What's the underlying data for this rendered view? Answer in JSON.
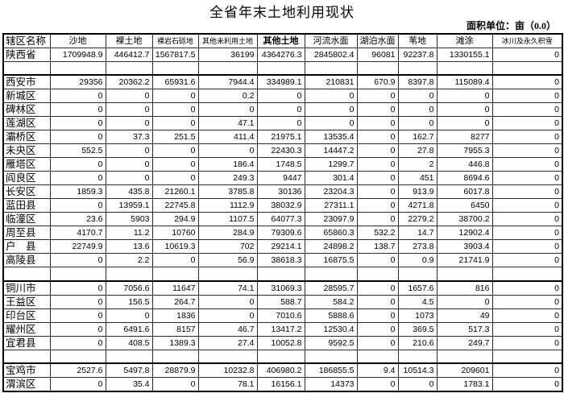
{
  "title": "全省年末土地利用现状",
  "unit_note": "面积单位：亩（0.0）",
  "table": {
    "columns": [
      "辖区名称",
      "沙地",
      "裸土地",
      "裸岩石砾地",
      "其他未利用土地",
      "其他土地",
      "河流水面",
      "湖泊水面",
      "苇地",
      "滩涂",
      "冰川及永久积雪"
    ],
    "rows": [
      {
        "type": "province",
        "name": "陕西省",
        "values": [
          "1709948.9",
          "446412.7",
          "1567817.5",
          "36199",
          "4364276.3",
          "2845802.4",
          "96081",
          "92237.8",
          "1330155.1",
          "0"
        ]
      },
      {
        "type": "spacer",
        "name": "",
        "values": [
          "",
          "",
          "",
          "",
          "",
          "",
          "",
          "",
          "",
          ""
        ]
      },
      {
        "type": "city",
        "name": "西安市",
        "values": [
          "29356",
          "20362.2",
          "65931.6",
          "7944.4",
          "334989.1",
          "210831",
          "670.9",
          "8397.8",
          "115089.4",
          "0"
        ]
      },
      {
        "type": "district",
        "name": "新城区",
        "values": [
          "0",
          "0",
          "0",
          "0.2",
          "0",
          "0",
          "0",
          "0",
          "0",
          "0"
        ]
      },
      {
        "type": "district",
        "name": "碑林区",
        "values": [
          "0",
          "0",
          "0",
          "0",
          "0",
          "0",
          "0",
          "0",
          "0",
          "0"
        ]
      },
      {
        "type": "district",
        "name": "莲湖区",
        "values": [
          "0",
          "0",
          "0",
          "47.1",
          "0",
          "0",
          "0",
          "0",
          "0",
          "0"
        ]
      },
      {
        "type": "district",
        "name": "灞桥区",
        "values": [
          "0",
          "37.3",
          "251.5",
          "411.4",
          "21975.1",
          "13535.4",
          "0",
          "162.7",
          "8277",
          "0"
        ]
      },
      {
        "type": "district",
        "name": "未央区",
        "values": [
          "552.5",
          "0",
          "0",
          "0",
          "22430.3",
          "14447.2",
          "0",
          "27.8",
          "7955.3",
          "0"
        ]
      },
      {
        "type": "district",
        "name": "雁塔区",
        "values": [
          "0",
          "0",
          "0",
          "186.4",
          "1748.5",
          "1299.7",
          "0",
          "2",
          "446.8",
          "0"
        ]
      },
      {
        "type": "district",
        "name": "阎良区",
        "values": [
          "0",
          "0",
          "0",
          "249.3",
          "9447",
          "301.4",
          "0",
          "451",
          "8694.6",
          "0"
        ]
      },
      {
        "type": "district",
        "name": "长安区",
        "values": [
          "1859.3",
          "435.8",
          "21260.1",
          "3785.8",
          "30136",
          "23204.3",
          "0",
          "913.9",
          "6017.8",
          "0"
        ]
      },
      {
        "type": "district",
        "name": "蓝田县",
        "values": [
          "0",
          "13959.1",
          "22745.8",
          "1112.9",
          "38032.9",
          "27311.1",
          "0",
          "4271.8",
          "6450",
          "0"
        ]
      },
      {
        "type": "district",
        "name": "临潼区",
        "values": [
          "23.6",
          "5903",
          "294.9",
          "1107.5",
          "64077.3",
          "23097.9",
          "0",
          "2279.2",
          "38700.2",
          "0"
        ]
      },
      {
        "type": "district",
        "name": "周至县",
        "values": [
          "4170.7",
          "11.2",
          "10760",
          "284.9",
          "79309.6",
          "65860.3",
          "532.2",
          "14.7",
          "12902.4",
          "0"
        ]
      },
      {
        "type": "district",
        "name": "户　县",
        "values": [
          "22749.9",
          "13.6",
          "10619.3",
          "702",
          "29214.1",
          "24898.2",
          "138.7",
          "273.8",
          "3903.4",
          "0"
        ]
      },
      {
        "type": "district",
        "name": "高陵县",
        "values": [
          "0",
          "2.2",
          "0",
          "56.9",
          "38618.3",
          "16875.5",
          "0",
          "0.9",
          "21741.9",
          "0"
        ]
      },
      {
        "type": "spacer",
        "name": "",
        "values": [
          "",
          "",
          "",
          "",
          "",
          "",
          "",
          "",
          "",
          ""
        ]
      },
      {
        "type": "city",
        "name": "铜川市",
        "values": [
          "0",
          "7056.6",
          "11647",
          "74.1",
          "31069.3",
          "28595.7",
          "0",
          "1657.6",
          "816",
          "0"
        ]
      },
      {
        "type": "district",
        "name": "王益区",
        "values": [
          "0",
          "156.5",
          "264.7",
          "0",
          "588.7",
          "584.2",
          "0",
          "4.5",
          "0",
          "0"
        ]
      },
      {
        "type": "district",
        "name": "印台区",
        "values": [
          "0",
          "0",
          "1836",
          "0",
          "7010.6",
          "5888.6",
          "0",
          "1073",
          "49",
          "0"
        ]
      },
      {
        "type": "district",
        "name": "耀州区",
        "values": [
          "0",
          "6491.6",
          "8157",
          "46.7",
          "13417.2",
          "12530.4",
          "0",
          "369.5",
          "517.3",
          "0"
        ]
      },
      {
        "type": "district",
        "name": "宜君县",
        "values": [
          "0",
          "408.5",
          "1389.3",
          "27.4",
          "10052.8",
          "9592.5",
          "0",
          "210.6",
          "249.7",
          "0"
        ]
      },
      {
        "type": "spacer",
        "name": "",
        "values": [
          "",
          "",
          "",
          "",
          "",
          "",
          "",
          "",
          "",
          ""
        ]
      },
      {
        "type": "city",
        "name": "宝鸡市",
        "values": [
          "2527.6",
          "5497.8",
          "28879.9",
          "10232.8",
          "406980.2",
          "186855.5",
          "9.4",
          "10514.3",
          "209601",
          "0"
        ]
      },
      {
        "type": "district",
        "name": "渭滨区",
        "values": [
          "0",
          "35.4",
          "0",
          "78.1",
          "16156.1",
          "14373",
          "0",
          "0",
          "1783.1",
          "0"
        ]
      }
    ]
  }
}
